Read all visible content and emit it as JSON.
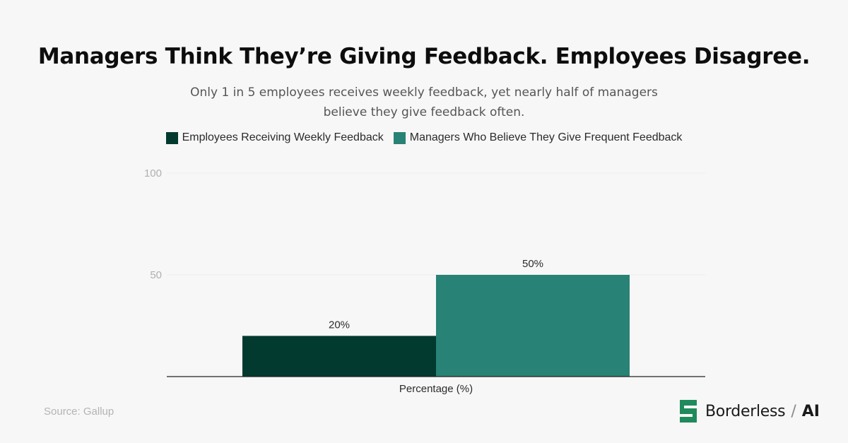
{
  "header": {
    "title": "Managers Think They’re Giving Feedback. Employees Disagree.",
    "subtitle_line1": "Only 1 in 5 employees receives weekly feedback, yet nearly half of managers",
    "subtitle_line2": "believe they give feedback often."
  },
  "chart_data": {
    "type": "bar",
    "title": "Managers Think They’re Giving Feedback. Employees Disagree.",
    "subtitle": "Only 1 in 5 employees receives weekly feedback, yet nearly half of managers believe they give feedback often.",
    "categories": [
      "Percentage (%)"
    ],
    "series": [
      {
        "name": "Employees Receiving Weekly Feedback",
        "values": [
          20
        ],
        "label": "20%",
        "color": "#023a30"
      },
      {
        "name": "Managers Who Believe They Give Frequent Feedback",
        "values": [
          50
        ],
        "label": "50%",
        "color": "#288276"
      }
    ],
    "xlabel": "Percentage (%)",
    "ylabel": "",
    "ylim": [
      0,
      100
    ],
    "yticks": [
      "50",
      "100"
    ],
    "grid": true,
    "legend": "top-center"
  },
  "footer": {
    "source": "Source: Gallup",
    "brand_name": "Borderless",
    "brand_separator": "/",
    "brand_suffix": "AI",
    "brand_color": "#1f8a5b",
    "logo_icon": "borderless-logo-icon"
  }
}
